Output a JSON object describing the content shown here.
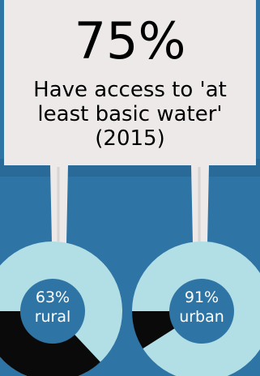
{
  "headline": {
    "value": "75%",
    "caption_lines": [
      "Have access to 'at",
      "least basic water'",
      "(2015)"
    ]
  },
  "colors": {
    "background": "#2e75a6",
    "card": "#ece9e8",
    "ring_light": "#b2dfe6",
    "ring_dark": "#0a0a0a",
    "center": "#2e75a6",
    "post": "#ece9e8"
  },
  "donuts": [
    {
      "key": "rural",
      "percent_label": "63%",
      "label": "rural",
      "fraction": 0.63
    },
    {
      "key": "urban",
      "percent_label": "91%",
      "label": "urban",
      "fraction": 0.91
    }
  ]
}
